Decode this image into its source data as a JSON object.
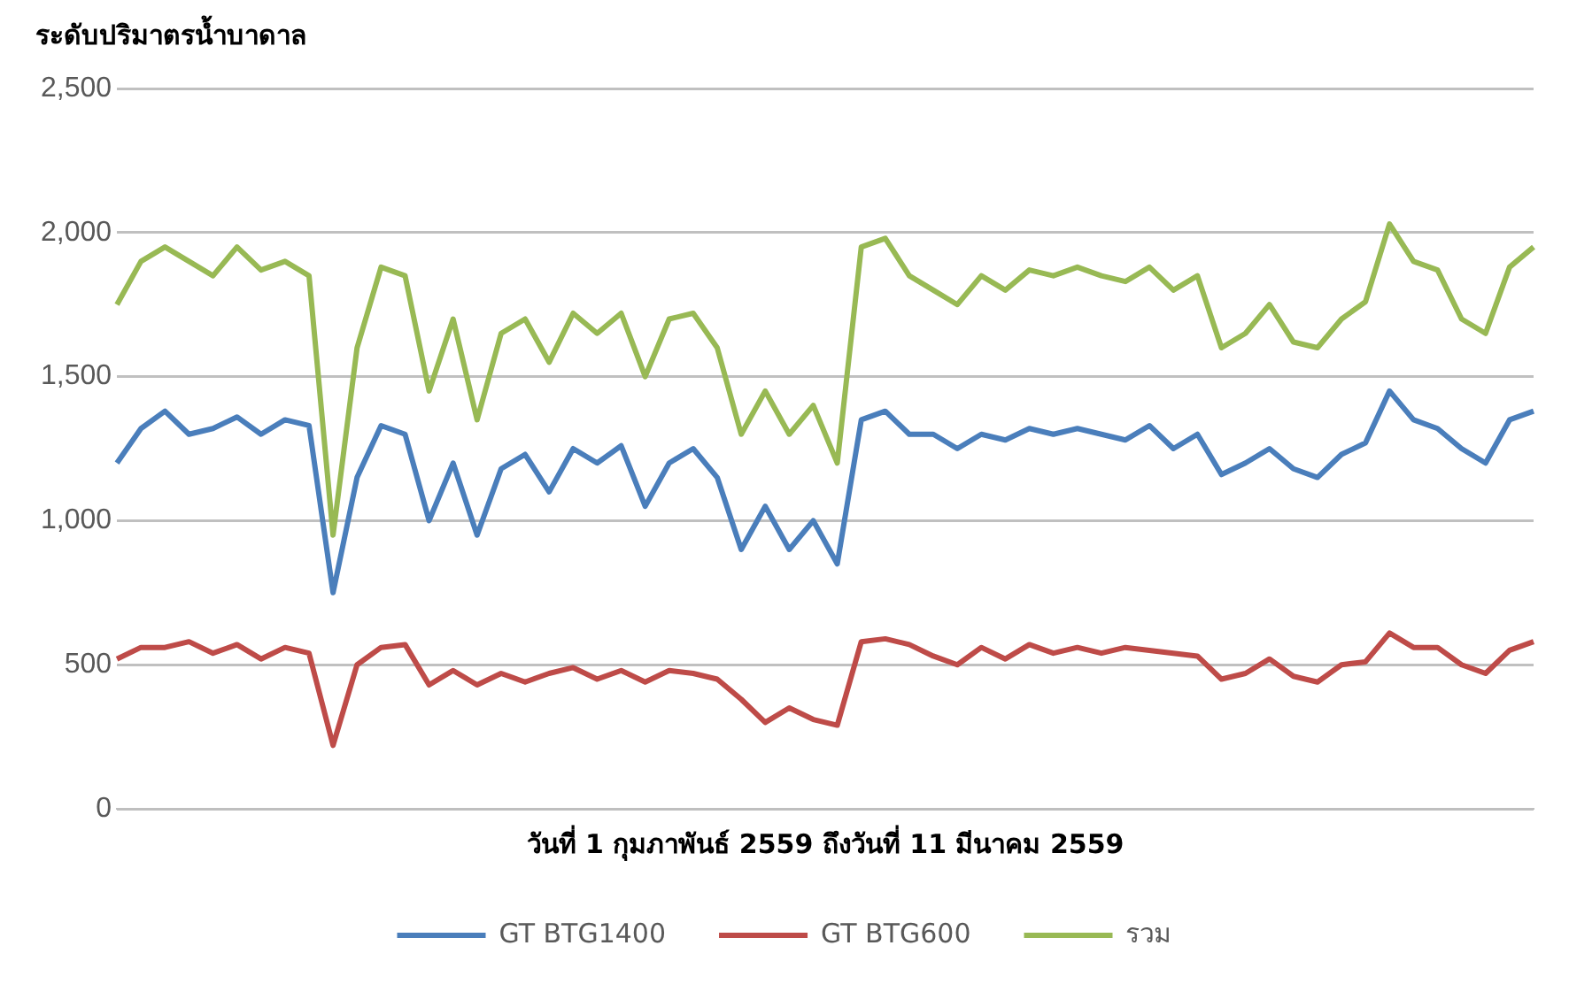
{
  "chart_data": {
    "type": "line",
    "title": "ระดับปริมาตรน้ำบาดาล",
    "xlabel": "วันที่ 1 กุมภาพันธ์ 2559 ถึงวันที่ 11 มีนาคม 2559",
    "categories": [
      null,
      null,
      null,
      null,
      null,
      null,
      null,
      null,
      null,
      null,
      null,
      null,
      null,
      null,
      null,
      null,
      null,
      null,
      null,
      null,
      null,
      null,
      null,
      null,
      null,
      null,
      null,
      null,
      null,
      null,
      null,
      null,
      null,
      null,
      null,
      null,
      null,
      null,
      null,
      null,
      null,
      null,
      null,
      null,
      null,
      null,
      null,
      null,
      null,
      null,
      null,
      null,
      null,
      null,
      null,
      null,
      null,
      null,
      null,
      null
    ],
    "series": [
      {
        "name": "GT BTG1400",
        "color": "#4a7ebb",
        "values": [
          1200,
          1320,
          1380,
          1300,
          1320,
          1360,
          1300,
          1350,
          1330,
          750,
          1150,
          1330,
          1300,
          1000,
          1200,
          950,
          1180,
          1230,
          1100,
          1250,
          1200,
          1260,
          1050,
          1200,
          1250,
          1150,
          900,
          1050,
          900,
          1000,
          850,
          1350,
          1380,
          1300,
          1300,
          1250,
          1300,
          1280,
          1320,
          1300,
          1320,
          1300,
          1280,
          1330,
          1250,
          1300,
          1160,
          1200,
          1250,
          1180,
          1150,
          1230,
          1270,
          1450,
          1350,
          1320,
          1250,
          1200,
          1350,
          1380
        ]
      },
      {
        "name": "GT BTG600",
        "color": "#be4b48",
        "values": [
          520,
          560,
          560,
          580,
          540,
          570,
          520,
          560,
          540,
          220,
          500,
          560,
          570,
          430,
          480,
          430,
          470,
          440,
          470,
          490,
          450,
          480,
          440,
          480,
          470,
          450,
          380,
          300,
          350,
          310,
          290,
          580,
          590,
          570,
          530,
          500,
          560,
          520,
          570,
          540,
          560,
          540,
          560,
          550,
          540,
          530,
          450,
          470,
          520,
          460,
          440,
          500,
          510,
          610,
          560,
          560,
          500,
          470,
          550,
          580
        ]
      },
      {
        "name": "รวม",
        "color": "#98b954",
        "values": [
          1750,
          1900,
          1950,
          1900,
          1850,
          1950,
          1870,
          1900,
          1850,
          950,
          1600,
          1880,
          1850,
          1450,
          1700,
          1350,
          1650,
          1700,
          1550,
          1720,
          1650,
          1720,
          1500,
          1700,
          1720,
          1600,
          1300,
          1450,
          1300,
          1400,
          1200,
          1950,
          1980,
          1850,
          1800,
          1750,
          1850,
          1800,
          1870,
          1850,
          1880,
          1850,
          1830,
          1880,
          1800,
          1850,
          1600,
          1650,
          1750,
          1620,
          1600,
          1700,
          1760,
          2030,
          1900,
          1870,
          1700,
          1650,
          1880,
          1950
        ]
      }
    ],
    "ylim": [
      0,
      2500
    ],
    "yticks": [
      0,
      500,
      {
        "value": 1000,
        "label": "1,000"
      },
      {
        "value": 1500,
        "label": "1,500"
      },
      {
        "value": 2000,
        "label": "2,000"
      },
      {
        "value": 2500,
        "label": "2,500"
      }
    ],
    "grid": "y",
    "legend": "bottom",
    "marker": "none",
    "line_style": "solid",
    "tick_labels": "y"
  }
}
